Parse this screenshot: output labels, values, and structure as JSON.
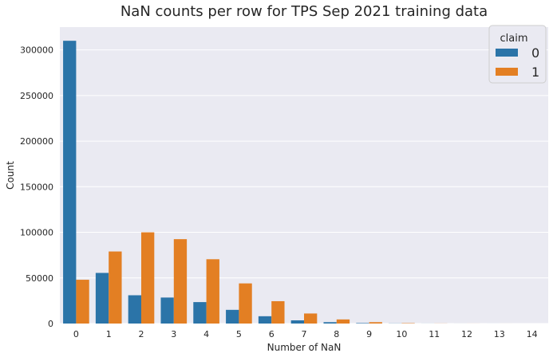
{
  "chart_data": {
    "type": "bar",
    "title": "NaN counts per row for TPS Sep 2021 training data",
    "xlabel": "Number of NaN",
    "ylabel": "Count",
    "categories": [
      "0",
      "1",
      "2",
      "3",
      "4",
      "5",
      "6",
      "7",
      "8",
      "9",
      "10",
      "11",
      "12",
      "13",
      "14"
    ],
    "ylim": [
      0,
      325000
    ],
    "yticks": [
      0,
      50000,
      100000,
      150000,
      200000,
      250000,
      300000
    ],
    "ytick_labels": [
      "0",
      "50000",
      "100000",
      "150000",
      "200000",
      "250000",
      "300000"
    ],
    "grid": true,
    "legend": {
      "title": "claim",
      "placement": "top-right"
    },
    "series": [
      {
        "name": "0",
        "color": "#2b74a8",
        "values": [
          310000,
          55500,
          31000,
          28500,
          23500,
          15000,
          8000,
          3500,
          1500,
          500,
          150,
          50,
          20,
          10,
          5
        ]
      },
      {
        "name": "1",
        "color": "#e37f23",
        "values": [
          48000,
          79000,
          100000,
          92500,
          70500,
          44000,
          24500,
          11000,
          4500,
          1500,
          400,
          100,
          30,
          10,
          5
        ]
      }
    ]
  }
}
